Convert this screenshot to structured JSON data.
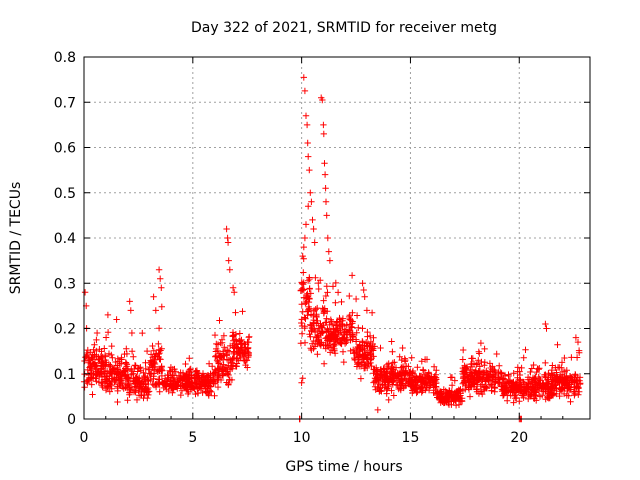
{
  "chart_data": {
    "type": "scatter",
    "title": "Day 322 of 2021, SRMTID for receiver metg",
    "xlabel": "GPS time / hours",
    "ylabel": "SRMTID / TECUs",
    "xlim": [
      0,
      23.25
    ],
    "ylim": [
      0,
      0.8
    ],
    "xticks": [
      0,
      5,
      10,
      15,
      20
    ],
    "yticks": [
      0,
      0.1,
      0.2,
      0.3,
      0.4,
      0.5,
      0.6,
      0.7,
      0.8
    ],
    "grid": true,
    "marker": "+",
    "color": "#ff0000",
    "profile_note": "approximate per-segment baseline/spread read from plot",
    "segments": [
      {
        "x0": 0.0,
        "x1": 1.0,
        "base": 0.11,
        "spread": 0.07
      },
      {
        "x0": 1.0,
        "x1": 2.0,
        "base": 0.1,
        "spread": 0.07
      },
      {
        "x0": 2.0,
        "x1": 3.0,
        "base": 0.08,
        "spread": 0.06
      },
      {
        "x0": 3.0,
        "x1": 3.6,
        "base": 0.11,
        "spread": 0.09
      },
      {
        "x0": 3.6,
        "x1": 5.0,
        "base": 0.08,
        "spread": 0.04
      },
      {
        "x0": 5.0,
        "x1": 6.0,
        "base": 0.08,
        "spread": 0.04
      },
      {
        "x0": 6.0,
        "x1": 6.8,
        "base": 0.12,
        "spread": 0.07
      },
      {
        "x0": 6.8,
        "x1": 7.6,
        "base": 0.15,
        "spread": 0.07
      },
      {
        "x0": 9.95,
        "x1": 10.4,
        "base": 0.26,
        "spread": 0.12
      },
      {
        "x0": 10.4,
        "x1": 11.2,
        "base": 0.2,
        "spread": 0.1
      },
      {
        "x0": 11.2,
        "x1": 12.4,
        "base": 0.19,
        "spread": 0.07
      },
      {
        "x0": 12.4,
        "x1": 13.3,
        "base": 0.15,
        "spread": 0.07
      },
      {
        "x0": 13.3,
        "x1": 15.0,
        "base": 0.09,
        "spread": 0.05
      },
      {
        "x0": 15.0,
        "x1": 16.2,
        "base": 0.08,
        "spread": 0.04
      },
      {
        "x0": 16.2,
        "x1": 17.4,
        "base": 0.05,
        "spread": 0.03
      },
      {
        "x0": 17.4,
        "x1": 19.2,
        "base": 0.09,
        "spread": 0.05
      },
      {
        "x0": 19.2,
        "x1": 20.0,
        "base": 0.07,
        "spread": 0.04
      },
      {
        "x0": 20.0,
        "x1": 21.5,
        "base": 0.07,
        "spread": 0.05
      },
      {
        "x0": 21.5,
        "x1": 22.8,
        "base": 0.08,
        "spread": 0.05
      }
    ],
    "outliers": [
      [
        0.05,
        0.28
      ],
      [
        0.1,
        0.25
      ],
      [
        0.6,
        0.19
      ],
      [
        1.1,
        0.23
      ],
      [
        1.5,
        0.22
      ],
      [
        2.1,
        0.26
      ],
      [
        2.15,
        0.24
      ],
      [
        2.2,
        0.19
      ],
      [
        3.2,
        0.27
      ],
      [
        3.45,
        0.33
      ],
      [
        3.5,
        0.31
      ],
      [
        3.55,
        0.29
      ],
      [
        3.3,
        0.24
      ],
      [
        6.55,
        0.42
      ],
      [
        6.6,
        0.4
      ],
      [
        6.62,
        0.39
      ],
      [
        6.65,
        0.35
      ],
      [
        6.7,
        0.33
      ],
      [
        6.85,
        0.29
      ],
      [
        6.9,
        0.28
      ],
      [
        10.1,
        0.755
      ],
      [
        10.15,
        0.725
      ],
      [
        10.2,
        0.67
      ],
      [
        10.25,
        0.65
      ],
      [
        10.28,
        0.61
      ],
      [
        10.3,
        0.58
      ],
      [
        10.35,
        0.55
      ],
      [
        10.4,
        0.5
      ],
      [
        10.45,
        0.48
      ],
      [
        10.3,
        0.47
      ],
      [
        10.2,
        0.43
      ],
      [
        10.15,
        0.4
      ],
      [
        10.1,
        0.38
      ],
      [
        10.05,
        0.36
      ],
      [
        10.5,
        0.44
      ],
      [
        10.55,
        0.42
      ],
      [
        10.6,
        0.39
      ],
      [
        10.9,
        0.71
      ],
      [
        10.95,
        0.705
      ],
      [
        11.0,
        0.65
      ],
      [
        11.02,
        0.63
      ],
      [
        11.05,
        0.565
      ],
      [
        11.08,
        0.54
      ],
      [
        11.1,
        0.51
      ],
      [
        11.12,
        0.48
      ],
      [
        11.15,
        0.45
      ],
      [
        11.2,
        0.4
      ],
      [
        11.25,
        0.37
      ],
      [
        11.3,
        0.35
      ],
      [
        12.8,
        0.3
      ],
      [
        12.85,
        0.285
      ],
      [
        12.9,
        0.27
      ],
      [
        13.0,
        0.24
      ],
      [
        21.2,
        0.21
      ],
      [
        21.25,
        0.2
      ],
      [
        22.6,
        0.18
      ],
      [
        22.7,
        0.17
      ],
      [
        9.9,
        0.0
      ],
      [
        9.92,
        0.0
      ],
      [
        20.0,
        0.0
      ],
      [
        20.05,
        0.0
      ],
      [
        20.1,
        0.0
      ],
      [
        10.0,
        0.08
      ],
      [
        10.05,
        0.09
      ],
      [
        13.5,
        0.02
      ]
    ]
  }
}
